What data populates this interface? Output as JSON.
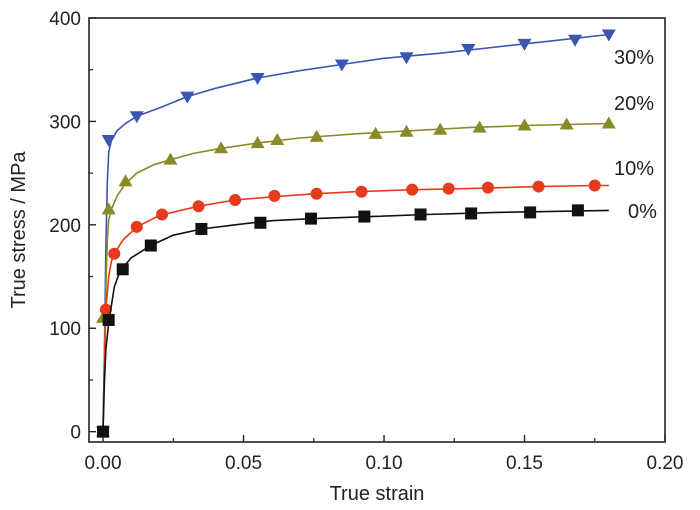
{
  "chart_data": {
    "type": "line",
    "xlabel": "True strain",
    "ylabel": "True stress / MPa",
    "xlim": [
      -0.005,
      0.2
    ],
    "ylim": [
      -10,
      400
    ],
    "x_ticks": [
      0.0,
      0.05,
      0.1,
      0.15,
      0.2
    ],
    "x_tick_labels": [
      "0.00",
      "0.05",
      "0.10",
      "0.15",
      "0.20"
    ],
    "y_ticks": [
      0,
      100,
      200,
      300,
      400
    ],
    "y_tick_labels": [
      "0",
      "100",
      "200",
      "300",
      "400"
    ],
    "grid": false,
    "legend": "inline labels at right end of curves",
    "series": [
      {
        "name": "30%",
        "color": "#3a56b0",
        "marker": "triangle-down",
        "curve": [
          [
            0,
            0
          ],
          [
            0.0005,
            80
          ],
          [
            0.001,
            180
          ],
          [
            0.0015,
            240
          ],
          [
            0.002,
            270
          ],
          [
            0.003,
            282
          ],
          [
            0.005,
            291
          ],
          [
            0.008,
            298
          ],
          [
            0.012,
            305
          ],
          [
            0.02,
            313
          ],
          [
            0.03,
            324
          ],
          [
            0.04,
            332
          ],
          [
            0.055,
            342
          ],
          [
            0.07,
            349
          ],
          [
            0.085,
            355
          ],
          [
            0.1,
            361
          ],
          [
            0.12,
            366
          ],
          [
            0.14,
            372
          ],
          [
            0.16,
            378
          ],
          [
            0.18,
            384
          ]
        ],
        "markers": [
          [
            0,
            0
          ],
          [
            0.002,
            282
          ],
          [
            0.012,
            305
          ],
          [
            0.03,
            324
          ],
          [
            0.055,
            342
          ],
          [
            0.085,
            355
          ],
          [
            0.108,
            362
          ],
          [
            0.13,
            370
          ],
          [
            0.15,
            375
          ],
          [
            0.168,
            379
          ],
          [
            0.18,
            384
          ]
        ]
      },
      {
        "name": "20%",
        "color": "#8a8a2a",
        "marker": "triangle-up",
        "curve": [
          [
            0,
            0
          ],
          [
            0.0005,
            80
          ],
          [
            0.001,
            140
          ],
          [
            0.0015,
            185
          ],
          [
            0.002,
            205
          ],
          [
            0.003,
            215
          ],
          [
            0.005,
            228
          ],
          [
            0.008,
            240
          ],
          [
            0.012,
            250
          ],
          [
            0.018,
            258
          ],
          [
            0.024,
            263
          ],
          [
            0.032,
            269
          ],
          [
            0.042,
            274
          ],
          [
            0.055,
            279
          ],
          [
            0.07,
            284
          ],
          [
            0.09,
            288
          ],
          [
            0.11,
            291
          ],
          [
            0.13,
            294
          ],
          [
            0.15,
            296
          ],
          [
            0.165,
            297
          ],
          [
            0.18,
            298
          ]
        ],
        "markers": [
          [
            0,
            0
          ],
          [
            0,
            110
          ],
          [
            0.002,
            215
          ],
          [
            0.008,
            242
          ],
          [
            0.024,
            263
          ],
          [
            0.042,
            274
          ],
          [
            0.055,
            279
          ],
          [
            0.062,
            282
          ],
          [
            0.076,
            285
          ],
          [
            0.097,
            288
          ],
          [
            0.108,
            290
          ],
          [
            0.12,
            292
          ],
          [
            0.134,
            294
          ],
          [
            0.15,
            296
          ],
          [
            0.165,
            297
          ],
          [
            0.18,
            298
          ]
        ]
      },
      {
        "name": "10%",
        "color": "#e63a1e",
        "marker": "circle",
        "curve": [
          [
            0,
            0
          ],
          [
            0.0005,
            70
          ],
          [
            0.001,
            118
          ],
          [
            0.002,
            150
          ],
          [
            0.003,
            165
          ],
          [
            0.004,
            172
          ],
          [
            0.007,
            185
          ],
          [
            0.012,
            198
          ],
          [
            0.02,
            209
          ],
          [
            0.034,
            218
          ],
          [
            0.047,
            224
          ],
          [
            0.06,
            227
          ],
          [
            0.075,
            230
          ],
          [
            0.09,
            232
          ],
          [
            0.11,
            234
          ],
          [
            0.13,
            235
          ],
          [
            0.155,
            237
          ],
          [
            0.175,
            238
          ],
          [
            0.18,
            238
          ]
        ],
        "markers": [
          [
            0,
            0
          ],
          [
            0.001,
            118
          ],
          [
            0.004,
            172
          ],
          [
            0.012,
            198
          ],
          [
            0.021,
            210
          ],
          [
            0.034,
            218
          ],
          [
            0.047,
            224
          ],
          [
            0.061,
            228
          ],
          [
            0.076,
            230
          ],
          [
            0.092,
            232
          ],
          [
            0.11,
            234
          ],
          [
            0.123,
            235
          ],
          [
            0.137,
            236
          ],
          [
            0.155,
            237
          ],
          [
            0.175,
            238
          ]
        ]
      },
      {
        "name": "0%",
        "color": "#111111",
        "marker": "square",
        "curve": [
          [
            0,
            0
          ],
          [
            0.0005,
            50
          ],
          [
            0.001,
            80
          ],
          [
            0.002,
            105
          ],
          [
            0.004,
            140
          ],
          [
            0.006,
            155
          ],
          [
            0.01,
            168
          ],
          [
            0.017,
            180
          ],
          [
            0.025,
            190
          ],
          [
            0.035,
            196
          ],
          [
            0.05,
            201
          ],
          [
            0.06,
            204
          ],
          [
            0.075,
            206
          ],
          [
            0.095,
            208
          ],
          [
            0.115,
            210
          ],
          [
            0.14,
            212
          ],
          [
            0.16,
            213
          ],
          [
            0.18,
            214
          ]
        ],
        "markers": [
          [
            0,
            0
          ],
          [
            0.002,
            108
          ],
          [
            0.007,
            157
          ],
          [
            0.017,
            180
          ],
          [
            0.035,
            196
          ],
          [
            0.056,
            202
          ],
          [
            0.074,
            206
          ],
          [
            0.093,
            208
          ],
          [
            0.113,
            210
          ],
          [
            0.131,
            211
          ],
          [
            0.152,
            212
          ],
          [
            0.169,
            214
          ]
        ]
      }
    ],
    "annotations": [
      {
        "text": "30%",
        "series": "30%"
      },
      {
        "text": "20%",
        "series": "20%"
      },
      {
        "text": "10%",
        "series": "10%"
      },
      {
        "text": "0%",
        "series": "0%"
      }
    ]
  }
}
